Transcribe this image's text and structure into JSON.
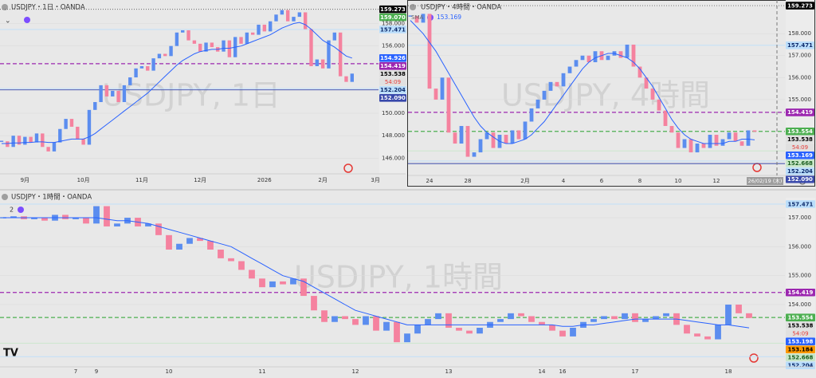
{
  "chart_data": [
    {
      "type": "candlestick",
      "title": "USDJPY・1日・OANDA",
      "watermark": "USDJPY, 1日",
      "countdown": "54:09",
      "ylim": [
        144.6,
        160.1
      ],
      "yticks": [
        {
          "value": 146,
          "label": "146.000"
        },
        {
          "value": 148,
          "label": "148.000"
        },
        {
          "value": 150,
          "label": "150.000"
        },
        {
          "value": 156,
          "label": "156.000"
        },
        {
          "value": 158,
          "label": "158.000"
        }
      ],
      "categories": [
        null,
        null,
        null,
        null,
        "9月",
        null,
        null,
        null,
        null,
        null,
        null,
        null,
        null,
        null,
        "10月",
        null,
        null,
        null,
        null,
        null,
        null,
        null,
        null,
        null,
        "11月",
        null,
        null,
        null,
        null,
        null,
        null,
        null,
        null,
        null,
        "12月",
        null,
        null,
        null,
        null,
        null,
        null,
        null,
        null,
        null,
        null,
        "2026",
        null,
        null,
        null,
        null,
        null,
        null,
        null,
        null,
        null,
        "2月",
        null,
        null,
        null,
        null,
        null,
        null,
        null,
        null,
        "3月"
      ],
      "up_color": "#5b8def",
      "down_color": "#f5829f",
      "series": [
        {
          "color": "#f5829f",
          "values": [
            147.5,
            147.0,
            148.0,
            147.2,
            147.9,
            147.4,
            148.2,
            147.0,
            146.6,
            147.4,
            148.6,
            149.5,
            148.8,
            147.7,
            147.2,
            150.3,
            151.0,
            152.5,
            151.5,
            152.0,
            151.0,
            152.5,
            153.2,
            154.0,
            154.2,
            153.8,
            154.9,
            155.3,
            155.1,
            156.0,
            157.2,
            157.4,
            156.5,
            156.2,
            155.5,
            156.3,
            155.9,
            155.5,
            156.5,
            155.0,
            156.8,
            156.2,
            157.2,
            157.0,
            157.9,
            157.3,
            158.2,
            158.8,
            159.2,
            158.2,
            158.6,
            159.0,
            157.5,
            154.2,
            154.8,
            154.0,
            156.5,
            157.2,
            153.3,
            152.8,
            153.538,
            null,
            null,
            null,
            null
          ]
        },
        {
          "color": "#2962ff",
          "values": [
            147.3,
            147.3,
            147.35,
            147.35,
            147.4,
            147.4,
            147.45,
            147.45,
            147.4,
            147.4,
            147.5,
            147.6,
            147.7,
            147.7,
            147.7,
            147.9,
            148.2,
            148.6,
            149.0,
            149.4,
            149.8,
            150.2,
            150.6,
            151.0,
            151.4,
            151.8,
            152.3,
            152.8,
            153.3,
            153.8,
            154.3,
            154.7,
            155.0,
            155.3,
            155.5,
            155.6,
            155.7,
            155.7,
            155.8,
            155.8,
            155.9,
            156.0,
            156.2,
            156.4,
            156.6,
            156.8,
            157.0,
            157.3,
            157.6,
            157.8,
            158.0,
            158.1,
            157.9,
            157.5,
            157.0,
            156.5,
            156.2,
            155.9,
            155.5,
            155.1,
            154.926,
            null,
            null,
            null,
            null
          ]
        }
      ],
      "tags": [
        {
          "value": 159.273,
          "label": "159.273",
          "color": "#000000",
          "text_color": "#ffffff",
          "line": "dotted"
        },
        {
          "value": 159.07,
          "label": "159.070",
          "color": "#4caf50",
          "text_color": "#ffffff",
          "line": null
        },
        {
          "value": 157.471,
          "label": "157.471",
          "color": "#bbdefb",
          "text_color": "#0d2a6b",
          "line": "solid"
        },
        {
          "value": 154.926,
          "label": "154.926",
          "color": "#2962ff",
          "text_color": "#ffffff",
          "line": null
        },
        {
          "value": 154.419,
          "label": "154.419",
          "color": "#9c27b0",
          "text_color": "#ffffff",
          "line": "dashed"
        },
        {
          "value": 153.538,
          "label": "153.538",
          "color": "#e0e0e0",
          "text_color": "#000000",
          "line": null,
          "current": true
        },
        {
          "value": 152.204,
          "label": "152.204",
          "color": "#bbdefb",
          "text_color": "#0d2a6b",
          "line": "solid"
        },
        {
          "value": 152.09,
          "label": "152.090",
          "color": "#3949ab",
          "text_color": "#ffffff",
          "line": "solid"
        }
      ]
    },
    {
      "type": "candlestick",
      "title": "USDJPY・4時間・OANDA",
      "watermark": "USDJPY, 4時間",
      "countdown": "54:09",
      "crosshair_label": "26/02/19 (木)",
      "ylim": [
        151.55,
        159.53
      ],
      "yticks": [
        {
          "value": 155,
          "label": "155.000"
        },
        {
          "value": 156,
          "label": "156.000"
        },
        {
          "value": 157,
          "label": "157.000"
        },
        {
          "value": 158,
          "label": "158.000"
        }
      ],
      "categories": [
        null,
        null,
        null,
        "24",
        null,
        null,
        null,
        null,
        null,
        "28",
        null,
        null,
        null,
        null,
        null,
        null,
        null,
        null,
        "2月",
        null,
        null,
        null,
        null,
        null,
        "4",
        null,
        null,
        null,
        null,
        null,
        "6",
        null,
        null,
        null,
        null,
        null,
        "8",
        null,
        null,
        null,
        null,
        null,
        "10",
        null,
        null,
        null,
        null,
        null,
        "12",
        null,
        null,
        null,
        null,
        null,
        "14"
      ],
      "up_color": "#5b8def",
      "down_color": "#f5829f",
      "series": [
        {
          "color": "#f5829f",
          "values": [
            158.8,
            158.5,
            158.9,
            155.5,
            155.0,
            156.0,
            153.5,
            153.0,
            153.8,
            152.4,
            152.6,
            153.2,
            153.5,
            152.8,
            153.4,
            153.0,
            153.6,
            153.2,
            154.0,
            154.6,
            155.0,
            155.4,
            155.8,
            155.6,
            156.2,
            156.5,
            156.8,
            157.0,
            156.7,
            157.2,
            156.8,
            157.0,
            157.2,
            156.9,
            157.5,
            156.5,
            156.0,
            155.5,
            155.0,
            154.5,
            153.8,
            153.5,
            152.8,
            153.2,
            152.6,
            153.0,
            152.8,
            153.4,
            152.9,
            153.2,
            153.5,
            153.1,
            152.9,
            153.6,
            153.538
          ]
        },
        {
          "name": "SMA",
          "color": "#2962ff",
          "values": [
            158.6,
            158.3,
            158.0,
            157.6,
            157.2,
            156.7,
            156.2,
            155.7,
            155.2,
            154.7,
            154.2,
            153.8,
            153.5,
            153.3,
            153.1,
            153.0,
            153.0,
            153.1,
            153.2,
            153.4,
            153.7,
            154.0,
            154.4,
            154.8,
            155.2,
            155.6,
            156.0,
            156.4,
            156.7,
            156.9,
            157.0,
            157.1,
            157.1,
            157.0,
            156.9,
            156.7,
            156.4,
            156.0,
            155.6,
            155.1,
            154.6,
            154.1,
            153.7,
            153.4,
            153.2,
            153.1,
            153.0,
            153.0,
            153.0,
            153.0,
            153.1,
            153.1,
            153.2,
            153.2,
            153.169
          ],
          "legend_value": 153.169
        }
      ],
      "tags": [
        {
          "value": 159.273,
          "label": "159.273",
          "color": "#000000",
          "text_color": "#ffffff",
          "line": "dotted"
        },
        {
          "value": 157.471,
          "label": "157.471",
          "color": "#bbdefb",
          "text_color": "#0d2a6b",
          "line": "solid"
        },
        {
          "value": 154.419,
          "label": "154.419",
          "color": "#9c27b0",
          "text_color": "#ffffff",
          "line": "dashed"
        },
        {
          "value": 153.554,
          "label": "153.554",
          "color": "#4caf50",
          "text_color": "#ffffff",
          "line": "dashed"
        },
        {
          "value": 153.538,
          "label": "153.538",
          "color": "#e0e0e0",
          "text_color": "#000000",
          "line": null,
          "current": true
        },
        {
          "value": 153.169,
          "label": "153.169",
          "color": "#2962ff",
          "text_color": "#ffffff",
          "line": null
        },
        {
          "value": 152.668,
          "label": "152.668",
          "color": "#c8e6c9",
          "text_color": "#1b5e20",
          "line": "solid"
        },
        {
          "value": 152.204,
          "label": "152.204",
          "color": "#bbdefb",
          "text_color": "#0d2a6b",
          "line": "solid"
        },
        {
          "value": 152.09,
          "label": "152.090",
          "color": "#3949ab",
          "text_color": "#ffffff",
          "line": "solid"
        }
      ]
    },
    {
      "type": "candlestick",
      "title": "USDJPY・1時間・OANDA",
      "watermark": "USDJPY, 1時間",
      "countdown": "54:09",
      "badge": "2",
      "ylim": [
        151.85,
        157.69
      ],
      "yticks": [
        {
          "value": 154,
          "label": "154.000"
        },
        {
          "value": 155,
          "label": "155.000"
        },
        {
          "value": 156,
          "label": "156.000"
        },
        {
          "value": 157,
          "label": "157.000"
        }
      ],
      "categories": [
        null,
        null,
        null,
        null,
        null,
        null,
        null,
        "7",
        null,
        "9",
        null,
        null,
        null,
        null,
        null,
        null,
        "10",
        null,
        null,
        null,
        null,
        null,
        null,
        null,
        null,
        "11",
        null,
        null,
        null,
        null,
        null,
        null,
        null,
        null,
        "12",
        null,
        null,
        null,
        null,
        null,
        null,
        null,
        null,
        "13",
        null,
        null,
        null,
        null,
        null,
        null,
        null,
        null,
        "14",
        null,
        "16",
        null,
        null,
        null,
        null,
        null,
        null,
        "17",
        null,
        null,
        null,
        null,
        null,
        null,
        null,
        null,
        "18",
        null,
        null
      ],
      "up_color": "#5b8def",
      "down_color": "#f5829f",
      "series": [
        {
          "color": "#f5829f",
          "values": [
            157.0,
            157.05,
            156.95,
            157.0,
            156.9,
            157.1,
            156.95,
            157.0,
            156.8,
            157.4,
            156.7,
            156.8,
            157.0,
            156.7,
            156.8,
            156.4,
            155.9,
            156.1,
            156.3,
            156.2,
            155.9,
            155.6,
            155.5,
            155.2,
            154.9,
            154.6,
            154.8,
            154.7,
            154.9,
            154.3,
            153.8,
            153.4,
            153.6,
            153.5,
            153.3,
            153.6,
            153.1,
            153.4,
            152.7,
            153.0,
            153.3,
            153.5,
            153.7,
            153.2,
            153.1,
            153.0,
            153.2,
            153.4,
            153.5,
            153.7,
            153.6,
            153.4,
            153.3,
            153.1,
            152.9,
            153.2,
            153.4,
            153.5,
            153.6,
            153.5,
            153.7,
            153.4,
            153.5,
            153.6,
            153.7,
            153.3,
            153.0,
            152.9,
            152.8,
            153.3,
            154.0,
            153.7,
            153.538
          ]
        },
        {
          "color": "#2962ff",
          "values": [
            157.0,
            157.0,
            157.0,
            157.0,
            157.0,
            157.0,
            157.0,
            157.0,
            157.0,
            157.0,
            156.95,
            156.9,
            156.9,
            156.85,
            156.8,
            156.7,
            156.6,
            156.5,
            156.4,
            156.3,
            156.2,
            156.1,
            156.0,
            155.8,
            155.6,
            155.4,
            155.2,
            155.0,
            154.9,
            154.8,
            154.6,
            154.4,
            154.2,
            154.0,
            153.8,
            153.7,
            153.6,
            153.5,
            153.4,
            153.3,
            153.3,
            153.3,
            153.3,
            153.3,
            153.3,
            153.3,
            153.3,
            153.3,
            153.3,
            153.3,
            153.3,
            153.3,
            153.3,
            153.3,
            153.25,
            153.25,
            153.3,
            153.3,
            153.35,
            153.4,
            153.45,
            153.5,
            153.5,
            153.5,
            153.5,
            153.5,
            153.45,
            153.4,
            153.35,
            153.3,
            153.3,
            153.25,
            153.198
          ]
        }
      ],
      "tags": [
        {
          "value": 157.471,
          "label": "157.471",
          "color": "#bbdefb",
          "text_color": "#0d2a6b",
          "line": "solid"
        },
        {
          "value": 154.419,
          "label": "154.419",
          "color": "#9c27b0",
          "text_color": "#ffffff",
          "line": "dashed"
        },
        {
          "value": 153.554,
          "label": "153.554",
          "color": "#4caf50",
          "text_color": "#ffffff",
          "line": "dashed"
        },
        {
          "value": 153.538,
          "label": "153.538",
          "color": "#e0e0e0",
          "text_color": "#000000",
          "line": null,
          "current": true
        },
        {
          "value": 153.198,
          "label": "153.198",
          "color": "#2962ff",
          "text_color": "#ffffff",
          "line": null
        },
        {
          "value": 153.184,
          "label": "153.184",
          "color": "#ff9800",
          "text_color": "#000000",
          "line": null
        },
        {
          "value": 152.668,
          "label": "152.668",
          "color": "#c8e6c9",
          "text_color": "#1b5e20",
          "line": "solid"
        },
        {
          "value": 152.204,
          "label": "152.204",
          "color": "#bbdefb",
          "text_color": "#0d2a6b",
          "line": "solid"
        }
      ]
    }
  ]
}
